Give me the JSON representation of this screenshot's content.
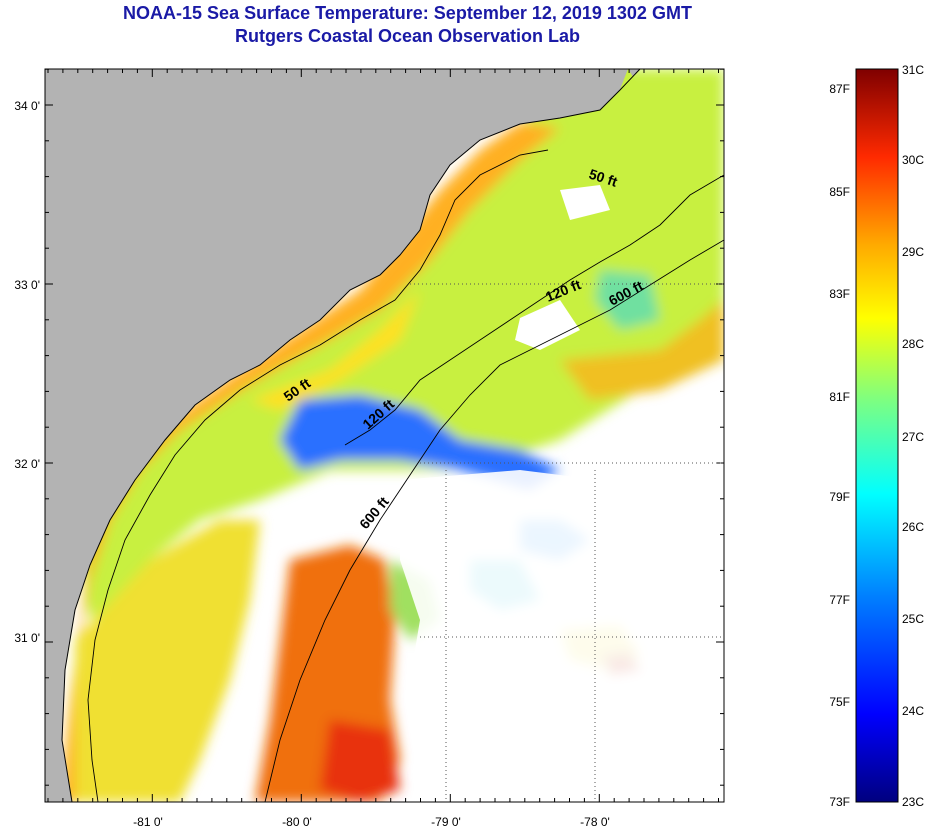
{
  "title": {
    "line1": "NOAA-15 Sea Surface Temperature:  September 12, 2019 1302 GMT",
    "line2": "Rutgers Coastal Ocean Observation Lab"
  },
  "map": {
    "lat_labels": [
      "34 0'",
      "33 0'",
      "32 0'",
      "31 0'"
    ],
    "lon_labels": [
      "-81 0'",
      "-80 0'",
      "-79 0'",
      "-78 0'"
    ],
    "contour_labels": [
      "50 ft",
      "120 ft",
      "600 ft",
      "50 ft",
      "120 ft",
      "600 ft"
    ]
  },
  "colorbar": {
    "fahrenheit_labels": [
      "87F",
      "85F",
      "83F",
      "81F",
      "79F",
      "77F",
      "75F",
      "73F"
    ],
    "celsius_labels": [
      "31C",
      "30C",
      "29C",
      "28C",
      "27C",
      "26C",
      "25C",
      "24C",
      "23C"
    ]
  },
  "colors": {
    "title": "#1a1aa6",
    "land": "#b3b3b3",
    "no_data": "#ffffff"
  }
}
